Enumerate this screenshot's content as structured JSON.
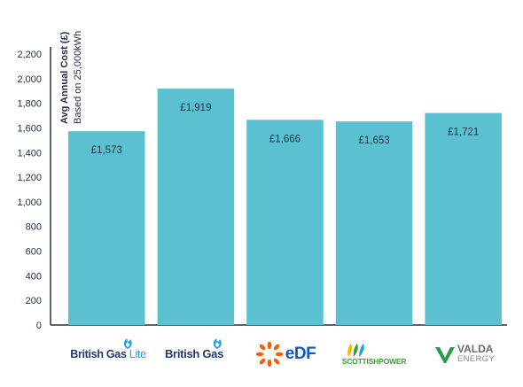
{
  "chart_data": {
    "type": "bar",
    "ylabel": "Avg Annual Cost (£)",
    "ysublabel": "Based on 25,000kWh",
    "ylim": [
      0,
      2200
    ],
    "yticks": [
      "0",
      "200",
      "400",
      "600",
      "800",
      "1,000",
      "1,200",
      "1,400",
      "1,600",
      "1,800",
      "2,000",
      "2,200"
    ],
    "categories": [
      "British Gas Lite",
      "British Gas",
      "EDF",
      "Scottish Power",
      "Valda Energy"
    ],
    "values": [
      1573,
      1919,
      1666,
      1653,
      1721
    ],
    "data_labels": [
      "£1,573",
      "£1,919",
      "£1,666",
      "£1,653",
      "£1,721"
    ],
    "bar_color": "#5bc0cf",
    "grid": false
  },
  "logos": {
    "british_gas_lite": {
      "brand": "British Gas",
      "suffix": "Lite",
      "icon": "flame-swirl-icon"
    },
    "british_gas": {
      "brand": "British Gas",
      "icon": "flame-swirl-icon"
    },
    "edf": {
      "text": "eDF",
      "icon": "edf-sun-icon"
    },
    "scottish_power": {
      "text": "SCOTTISHPOWER",
      "icon": "power-leaves-icon"
    },
    "valda": {
      "line1": "VALDA",
      "line2": "ENERGY",
      "icon": "valda-v-icon"
    }
  },
  "colors": {
    "axis": "#1e2e4a",
    "brand_navy": "#1f3a6e",
    "british_gas_blue": "#1aa3e0",
    "edf_orange": "#ff5a00",
    "edf_blue": "#1057c8",
    "sp_green": "#3f9c35",
    "valda_green": "#2e9a47",
    "valda_grey": "#6b6b6b"
  }
}
